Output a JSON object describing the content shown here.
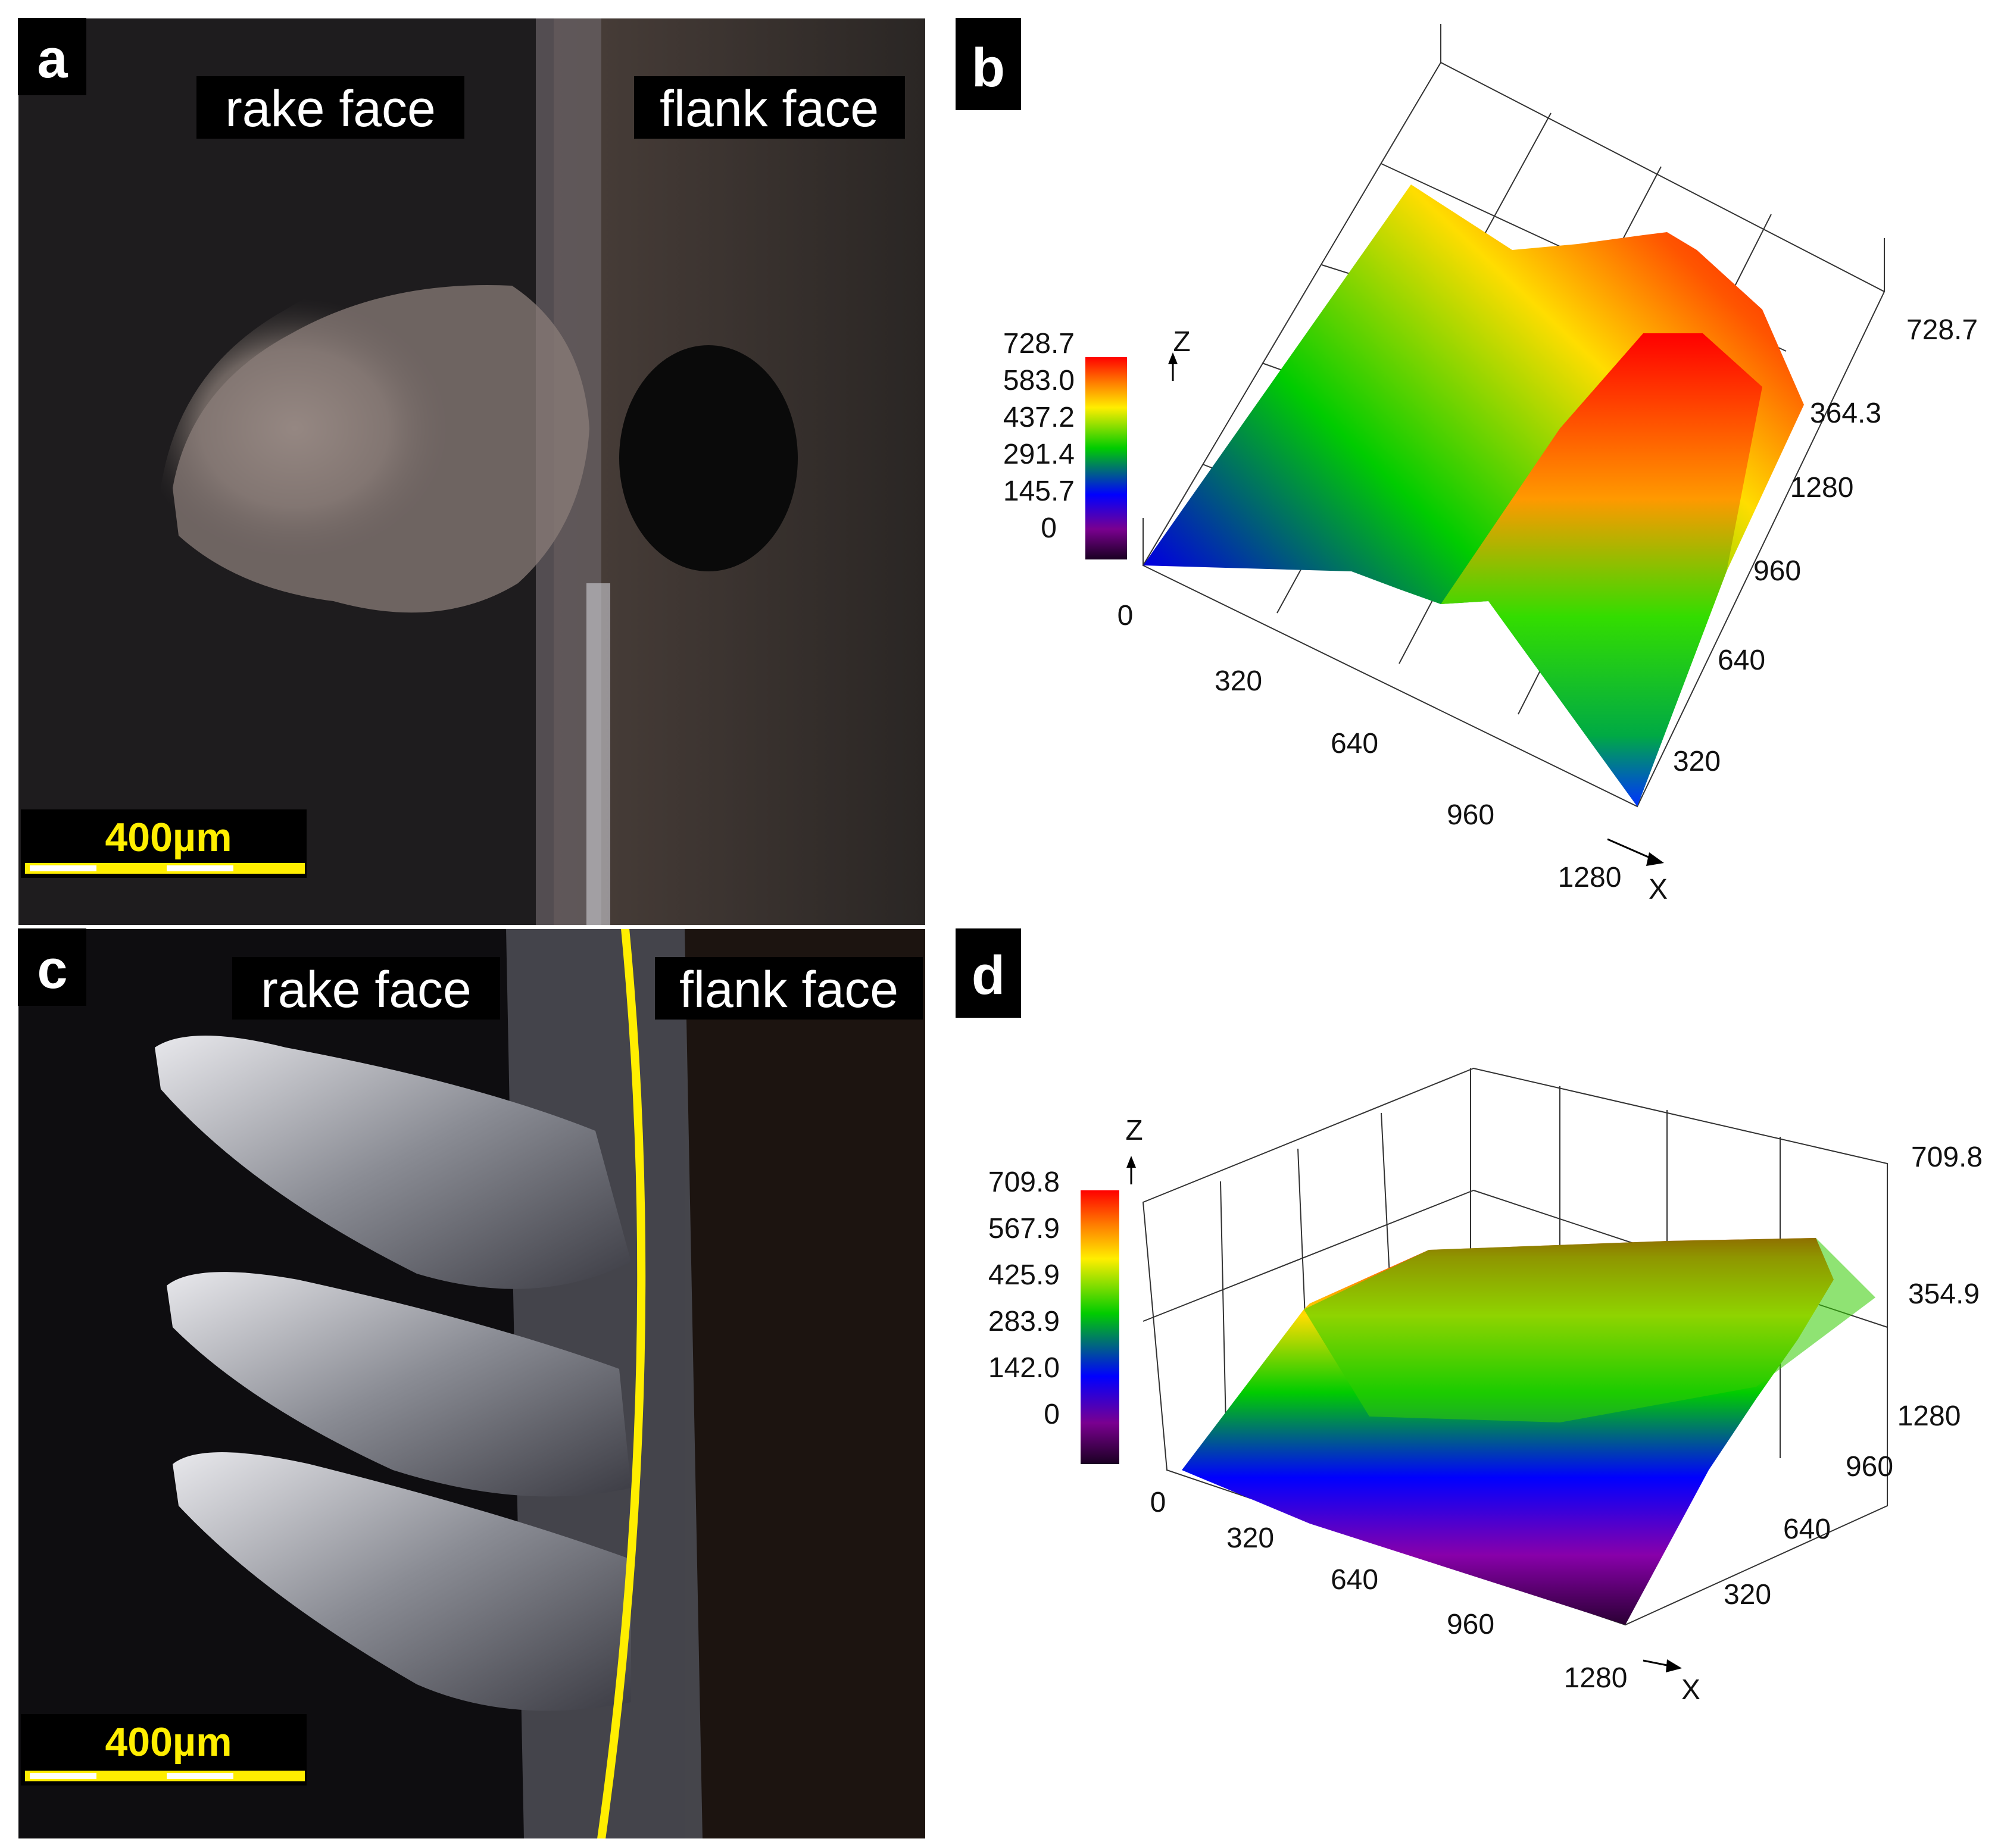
{
  "panels": {
    "a": {
      "letter": "a",
      "rake_label": "rake face",
      "flank_label": "flank face",
      "scale_bar": "400µm"
    },
    "b": {
      "letter": "b",
      "colorbar_ticks": [
        "728.7",
        "583.0",
        "437.2",
        "291.4",
        "145.7",
        "0"
      ],
      "z_axis": "Z",
      "x_axis": "X",
      "x_ticks": [
        "0",
        "320",
        "640",
        "960",
        "1280"
      ],
      "y_ticks": [
        "320",
        "640",
        "960",
        "1280"
      ],
      "z_ticks": [
        "364.3",
        "728.7"
      ]
    },
    "c": {
      "letter": "c",
      "rake_label": "rake face",
      "flank_label": "flank face",
      "scale_bar": "400µm"
    },
    "d": {
      "letter": "d",
      "colorbar_ticks": [
        "709.8",
        "567.9",
        "425.9",
        "283.9",
        "142.0",
        "0"
      ],
      "z_axis": "Z",
      "x_axis": "X",
      "x_ticks": [
        "0",
        "320",
        "640",
        "960",
        "1280"
      ],
      "y_ticks": [
        "320",
        "640",
        "960",
        "1280"
      ],
      "z_ticks": [
        "354.9",
        "709.8"
      ]
    }
  },
  "colors": {
    "scale_yellow": "#ffee00",
    "height_colormap": [
      "#1a0022",
      "#7a0090",
      "#0000ff",
      "#00cc00",
      "#ffee00",
      "#ff6600",
      "#ff0000"
    ]
  }
}
